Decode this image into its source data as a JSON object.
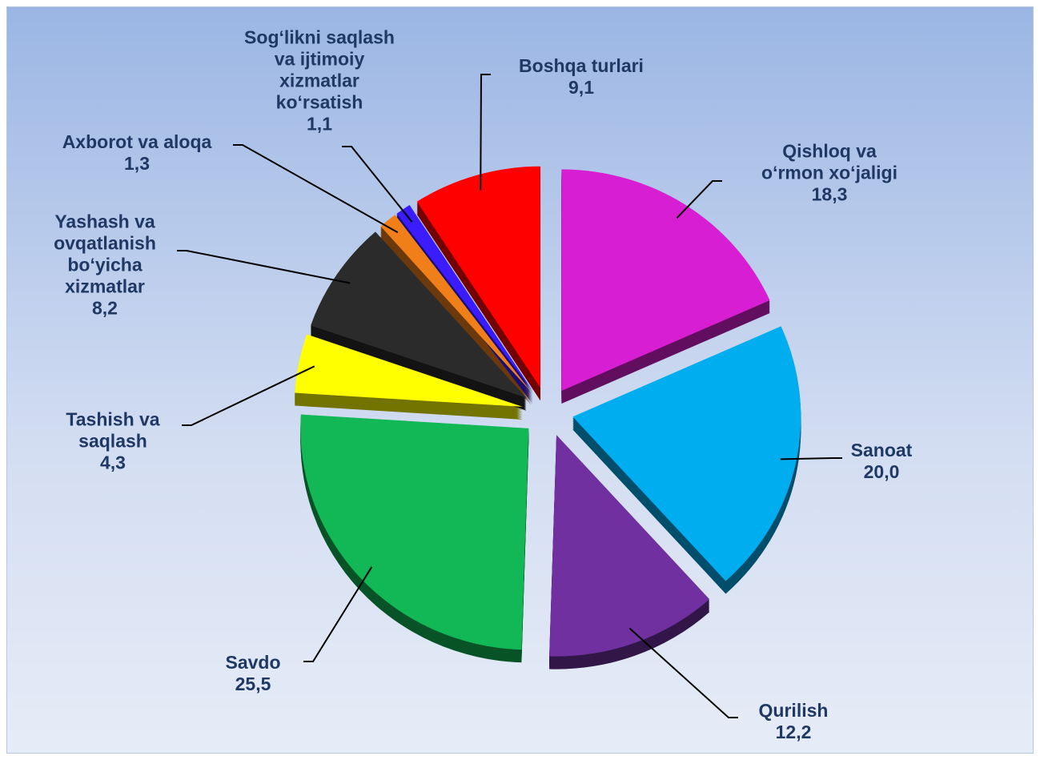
{
  "chart_data": {
    "type": "pie",
    "categories": [
      "Qishloq va\no‘rmon xo‘jaligi",
      "Sanoat",
      "Qurilish",
      "Savdo",
      "Tashish va\nsaqlash",
      "Yashash va\novqatlanish\nbo‘yicha\nxizmatlar",
      "Axborot va aloqa",
      "Sog‘likni saqlash\nva ijtimoiy\nxizmatlar\nko‘rsatish",
      "Boshqa turlari"
    ],
    "values": [
      18.3,
      20.0,
      12.2,
      25.5,
      4.3,
      8.2,
      1.3,
      1.1,
      9.1
    ],
    "value_labels": [
      "18,3",
      "20,0",
      "12,2",
      "25,5",
      "4,3",
      "8,2",
      "1,3",
      "1,1",
      "9,1"
    ],
    "colors": [
      "#d81ed2",
      "#00adef",
      "#7030a0",
      "#12b856",
      "#ffff00",
      "#2b2b2b",
      "#f07f1a",
      "#3a1cff",
      "#ff0000"
    ]
  }
}
